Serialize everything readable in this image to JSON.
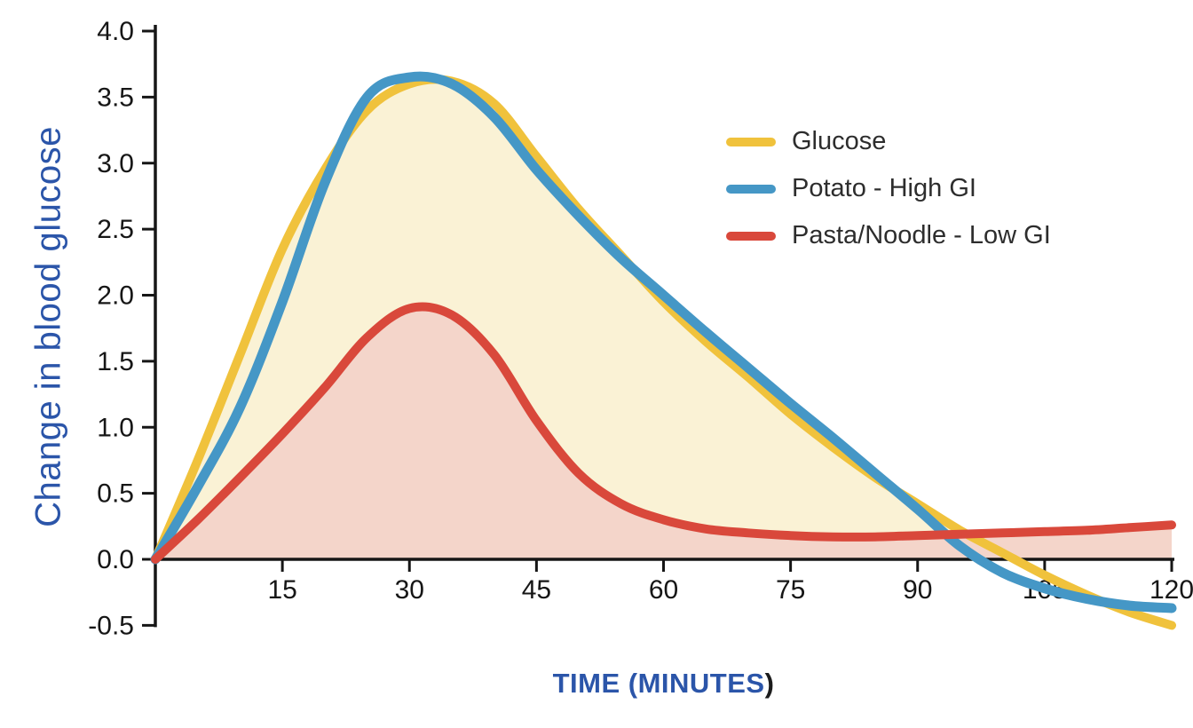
{
  "chart_data": {
    "type": "line",
    "title": "",
    "xlabel": "TIME (MINUTES)",
    "ylabel": "Change in blood glucose",
    "xlim": [
      0,
      120
    ],
    "ylim": [
      -0.5,
      4.0
    ],
    "grid": false,
    "legend_position": "upper-right",
    "x_tick_labels": [
      "15",
      "30",
      "45",
      "60",
      "75",
      "90",
      "105",
      "120"
    ],
    "y_tick_labels": [
      "4.0",
      "3.5",
      "3.0",
      "2.5",
      "2.0",
      "1.5",
      "1.0",
      "0.5",
      "0.0",
      "-0.5"
    ],
    "x": [
      0,
      5,
      10,
      15,
      20,
      25,
      30,
      35,
      40,
      45,
      50,
      55,
      60,
      65,
      70,
      75,
      80,
      85,
      90,
      95,
      100,
      105,
      110,
      115,
      120
    ],
    "series": [
      {
        "name": "Glucose",
        "color": "#F0C23C",
        "fill_color": "#FAF2D5",
        "values": [
          0,
          0.75,
          1.55,
          2.35,
          2.95,
          3.4,
          3.6,
          3.62,
          3.45,
          3.05,
          2.65,
          2.3,
          1.95,
          1.65,
          1.38,
          1.1,
          0.85,
          0.62,
          0.42,
          0.22,
          0.05,
          -0.12,
          -0.27,
          -0.4,
          -0.5
        ]
      },
      {
        "name": "Potato - High GI",
        "color": "#4597C6",
        "fill_color": null,
        "values": [
          0,
          0.55,
          1.15,
          1.95,
          2.85,
          3.5,
          3.65,
          3.6,
          3.35,
          2.95,
          2.6,
          2.28,
          2.0,
          1.72,
          1.45,
          1.18,
          0.92,
          0.65,
          0.38,
          0.1,
          -0.1,
          -0.22,
          -0.3,
          -0.35,
          -0.37
        ]
      },
      {
        "name": "Pasta/Noodle - Low GI",
        "color": "#D9483B",
        "fill_color": "#F4D5CA",
        "values": [
          0,
          0.3,
          0.62,
          0.95,
          1.3,
          1.68,
          1.9,
          1.85,
          1.55,
          1.05,
          0.65,
          0.42,
          0.3,
          0.23,
          0.2,
          0.18,
          0.17,
          0.17,
          0.18,
          0.19,
          0.2,
          0.21,
          0.22,
          0.24,
          0.26
        ]
      }
    ]
  },
  "axis": {
    "title_color": "#2B55A9",
    "tick_color": "#161616"
  }
}
